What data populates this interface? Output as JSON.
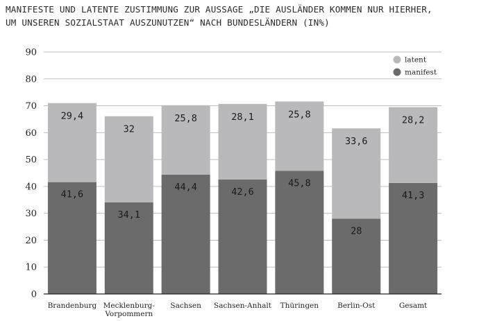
{
  "title_lines": [
    "MANIFESTE UND LATENTE ZUSTIMMUNG ZUR AUSSAGE „DIE AUSLÄNDER KOMMEN NUR HIERHER,",
    "UM UNSEREN SOZIALSTAAT AUSZUNUTZEN“ NACH BUNDESLÄNDERN (IN%)"
  ],
  "colors": {
    "manifest": "#6b6b6b",
    "latent": "#b9b9bc",
    "grid": "#bdbdbd",
    "axis": "#222222"
  },
  "chart_data": {
    "type": "bar",
    "stacked": true,
    "title": "MANIFESTE UND LATENTE ZUSTIMMUNG ZUR AUSSAGE „DIE AUSLÄNDER KOMMEN NUR HIERHER, UM UNSEREN SOZIALSTAAT AUSZUNUTZEN“ NACH BUNDESLÄNDERN (IN%)",
    "categories": [
      [
        "Brandenburg"
      ],
      [
        "Mecklenburg-",
        "Vorpommern"
      ],
      [
        "Sachsen"
      ],
      [
        "Sachsen-Anhalt"
      ],
      [
        "Thüringen"
      ],
      [
        "Berlin-Ost"
      ],
      [
        "Gesamt"
      ]
    ],
    "series": [
      {
        "name": "manifest",
        "values": [
          41.6,
          34.1,
          44.4,
          42.6,
          45.8,
          28,
          41.3
        ],
        "labels": [
          "41,6",
          "34,1",
          "44,4",
          "42,6",
          "45,8",
          "28",
          "41,3"
        ]
      },
      {
        "name": "latent",
        "values": [
          29.4,
          32,
          25.8,
          28.1,
          25.8,
          33.6,
          28.2
        ],
        "labels": [
          "29,4",
          "32",
          "25,8",
          "28,1",
          "25,8",
          "33,6",
          "28,2"
        ]
      }
    ],
    "ylim": [
      0,
      90
    ],
    "yticks": [
      0,
      10,
      20,
      30,
      40,
      50,
      60,
      70,
      80,
      90
    ],
    "xlabel": "",
    "ylabel": "",
    "grid": true,
    "legend": {
      "placement": "top-right",
      "entries": [
        "latent",
        "manifest"
      ]
    }
  }
}
